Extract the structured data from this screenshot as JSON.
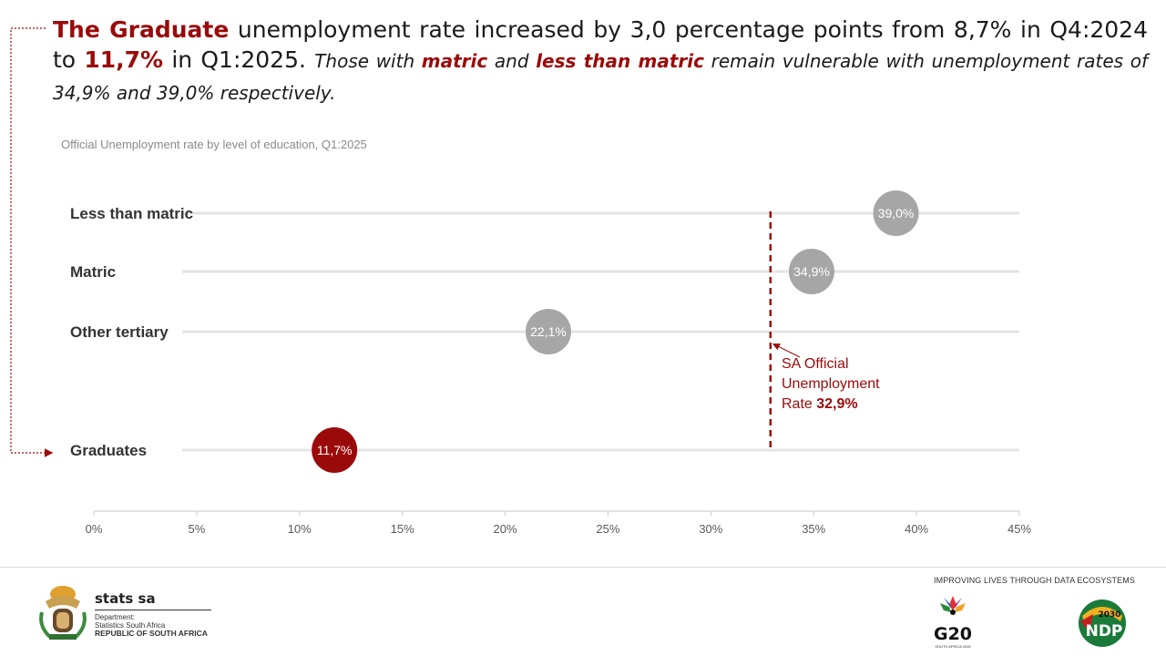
{
  "headline": {
    "p1": "The Graduate",
    "p2": " unemployment rate increased by 3,0 percentage points from 8,7% in Q4:2024 to ",
    "p3": "11,7%",
    "p4": " in Q1:2025. ",
    "p5": "Those with ",
    "p6": "matric",
    "p7": " and ",
    "p8": "less than matric",
    "p9": " remain vulnerable with unemployment rates of 34,9% and 39,0% respectively."
  },
  "chart_data": {
    "type": "scatter",
    "title": "Official Unemployment rate by level of education, Q1:2025",
    "categories": [
      "Less than matric",
      "Matric",
      "Other tertiary",
      "Graduates"
    ],
    "values": [
      39.0,
      34.9,
      22.1,
      11.7
    ],
    "value_labels": [
      "39,0%",
      "34,9%",
      "22,1%",
      "11,7%"
    ],
    "highlight": "Graduates",
    "xlim": [
      0,
      45
    ],
    "xticks": [
      0,
      5,
      10,
      15,
      20,
      25,
      30,
      35,
      40,
      45
    ],
    "xtick_labels": [
      "0%",
      "5%",
      "10%",
      "15%",
      "20%",
      "25%",
      "30%",
      "35%",
      "40%",
      "45%"
    ],
    "reference_line": {
      "value": 32.9,
      "label_lines": [
        "SA Official",
        "Unemployment"
      ],
      "label_prefix": "Rate ",
      "label_value": "32,9%"
    },
    "colors": {
      "highlight": "#9b0a0a",
      "normal": "#a6a6a6",
      "reference": "#9b0a0a",
      "gridline": "#e4e4e4"
    }
  },
  "footer": {
    "org_name": "stats sa",
    "dept_line1": "Department:",
    "dept_line2": "Statistics South Africa",
    "dept_line3": "REPUBLIC OF SOUTH AFRICA",
    "tagline": "IMPROVING LIVES THROUGH DATA ECOSYSTEMS",
    "g20_text": "G20",
    "g20_sub": "SOUTH AFRICA 2025",
    "ndp_text": "NDP",
    "ndp_year": "2030"
  }
}
